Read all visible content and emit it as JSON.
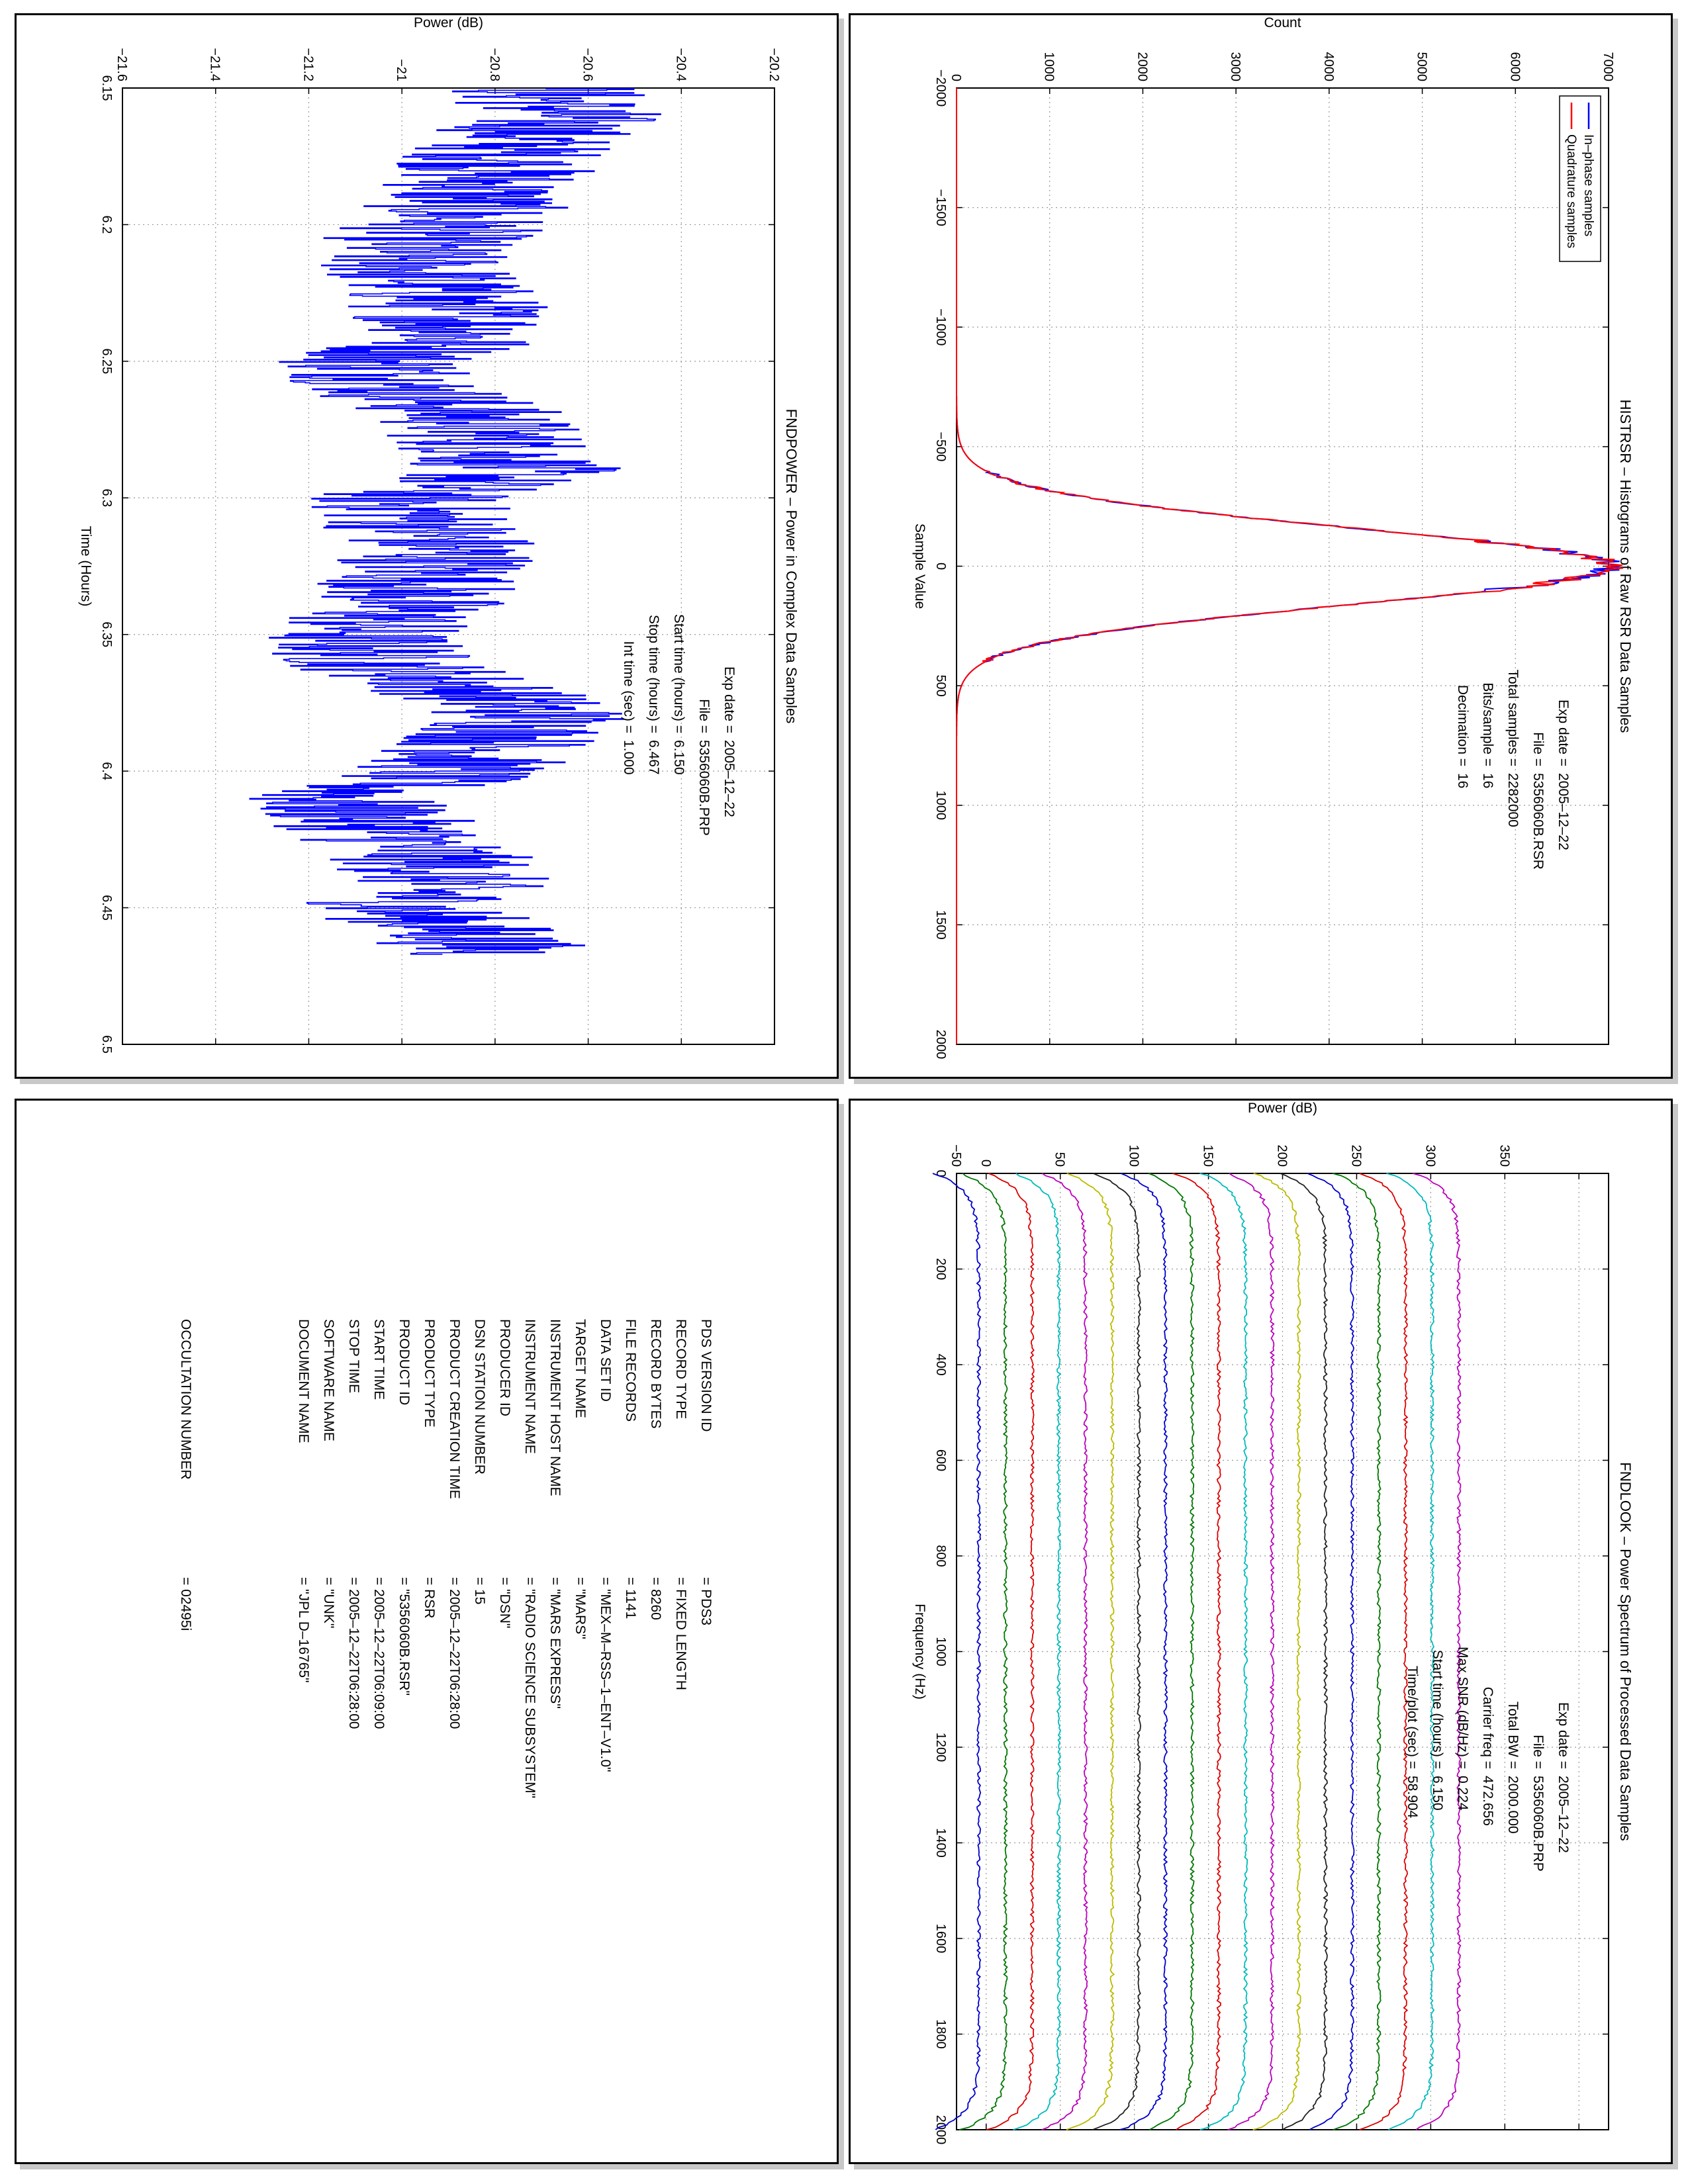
{
  "panels": {
    "histrsr": {
      "title": "HISTRSR – Histograms of Raw RSR Data Samples",
      "legend": [
        "In–phase samples",
        "Quadrature samples"
      ],
      "info": [
        {
          "label": "Exp date =",
          "value": "2005–12–22"
        },
        {
          "label": "File =",
          "value": "5356060B.RSR"
        },
        {
          "label": "Total samples =",
          "value": "2282000"
        },
        {
          "label": "Bits/sample =",
          "value": "16"
        },
        {
          "label": "Decimation =",
          "value": "16"
        }
      ]
    },
    "fndpower": {
      "title": "FNDPOWER – Power in Complex Data Samples",
      "info": [
        {
          "label": "Exp date =",
          "value": "2005–12–22"
        },
        {
          "label": "File =",
          "value": "5356060B.PRP"
        },
        {
          "label": "Start time (hours) =",
          "value": "6.150"
        },
        {
          "label": "Stop time (hours) =",
          "value": "6.467"
        },
        {
          "label": "Int time (sec) =",
          "value": "1.000"
        }
      ]
    },
    "fndlook": {
      "title": "FNDLOOK – Power Spectrum of Processed Data Samples",
      "info": [
        {
          "label": "Exp date =",
          "value": "2005–12–22"
        },
        {
          "label": "File =",
          "value": "5356060B.PRP"
        },
        {
          "label": "Total BW =",
          "value": "2000.000"
        },
        {
          "label": "Carrier freq =",
          "value": "472.656"
        },
        {
          "label": "Max SNR (dB/Hz) =",
          "value": "0.224"
        },
        {
          "label": "Start time (hours) =",
          "value": "6.150"
        },
        {
          "label": "Time/plot (sec) =",
          "value": "58.904"
        }
      ]
    },
    "label": {
      "rows": [
        {
          "key": "PDS VERSION ID",
          "value": "= PDS3"
        },
        {
          "key": "RECORD TYPE",
          "value": "= FIXED LENGTH"
        },
        {
          "key": "RECORD BYTES",
          "value": "= 8260"
        },
        {
          "key": "FILE RECORDS",
          "value": "= 1141"
        },
        {
          "key": "DATA SET ID",
          "value": "= \"MEX–M–RSS–1–ENT–V1.0\""
        },
        {
          "key": "TARGET NAME",
          "value": "= \"MARS\""
        },
        {
          "key": "INSTRUMENT HOST NAME",
          "value": "= \"MARS EXPRESS\""
        },
        {
          "key": "INSTRUMENT NAME",
          "value": "= \"RADIO SCIENCE SUBSYSTEM\""
        },
        {
          "key": "PRODUCER ID",
          "value": "= \"DSN\""
        },
        {
          "key": "DSN STATION NUMBER",
          "value": "= 15"
        },
        {
          "key": "PRODUCT CREATION TIME",
          "value": "= 2005–12–22T06:28:00"
        },
        {
          "key": "PRODUCT TYPE",
          "value": "= RSR"
        },
        {
          "key": "PRODUCT ID",
          "value": "= \"5356060B.RSR\""
        },
        {
          "key": "START TIME",
          "value": "= 2005–12–22T06:09:00"
        },
        {
          "key": "STOP TIME",
          "value": "= 2005–12–22T06:28:00"
        },
        {
          "key": "SOFTWARE NAME",
          "value": "= \"UNK\""
        },
        {
          "key": "DOCUMENT NAME",
          "value": "= \"JPL D–16765\""
        }
      ],
      "occultation": {
        "key": "OCCULTATION NUMBER",
        "value": "= 02495i"
      }
    }
  },
  "chart_data": [
    {
      "type": "line",
      "title": "HISTRSR – Histograms of Raw RSR Data Samples",
      "xlabel": "Sample Value",
      "ylabel": "Count",
      "xlim": [
        -2000,
        2000
      ],
      "ylim": [
        0,
        7000
      ],
      "xticks": [
        "−2000",
        "−1500",
        "−1000",
        "−500",
        "0",
        "500",
        "1000",
        "1500",
        "2000"
      ],
      "yticks": [
        "0",
        "1000",
        "2000",
        "3000",
        "4000",
        "5000",
        "6000",
        "7000"
      ],
      "grid": true,
      "legend": "top-left",
      "series": [
        {
          "name": "In–phase samples",
          "color": "#0000ff",
          "x": [
            -2000,
            -600,
            -500,
            -400,
            -300,
            -200,
            -150,
            -100,
            -50,
            0,
            50,
            100,
            150,
            200,
            300,
            400,
            500,
            600,
            2000
          ],
          "y": [
            0,
            0,
            20,
            260,
            1330,
            3800,
            5150,
            6180,
            6880,
            7050,
            6880,
            6180,
            5150,
            3800,
            1330,
            260,
            20,
            0,
            0
          ]
        },
        {
          "name": "Quadrature samples",
          "color": "#ff0000",
          "x": [
            -2000,
            -600,
            -500,
            -400,
            -300,
            -200,
            -150,
            -100,
            -50,
            0,
            50,
            100,
            150,
            200,
            300,
            400,
            500,
            600,
            2000
          ],
          "y": [
            0,
            0,
            20,
            260,
            1330,
            3800,
            5150,
            6180,
            6880,
            7050,
            6880,
            6180,
            5150,
            3800,
            1330,
            260,
            20,
            0,
            0
          ]
        }
      ]
    },
    {
      "type": "line",
      "title": "FNDPOWER – Power in Complex Data Samples",
      "xlabel": "Time (Hours)",
      "ylabel": "Power (dB)",
      "xlim": [
        6.15,
        6.5
      ],
      "ylim": [
        -21.6,
        -20.2
      ],
      "xticks": [
        "6.15",
        "6.2",
        "6.25",
        "6.3",
        "6.35",
        "6.4",
        "6.45",
        "6.5"
      ],
      "yticks": [
        "−21.6",
        "−21.4",
        "−21.2",
        "−21",
        "−20.8",
        "−20.6",
        "−20.4",
        "−20.2"
      ],
      "grid": true,
      "series": [
        {
          "color": "#0000ff",
          "x": [
            6.15,
            6.16,
            6.17,
            6.18,
            6.19,
            6.2,
            6.21,
            6.22,
            6.23,
            6.24,
            6.25,
            6.26,
            6.27,
            6.28,
            6.29,
            6.3,
            6.31,
            6.32,
            6.33,
            6.34,
            6.35,
            6.36,
            6.37,
            6.38,
            6.39,
            6.4,
            6.41,
            6.42,
            6.43,
            6.44,
            6.45,
            6.46,
            6.467
          ],
          "y": [
            -20.7,
            -20.65,
            -20.75,
            -20.8,
            -20.85,
            -20.9,
            -21.0,
            -20.95,
            -20.9,
            -20.85,
            -21.05,
            -21.0,
            -20.85,
            -20.8,
            -20.75,
            -21.0,
            -20.95,
            -20.9,
            -20.95,
            -21.0,
            -21.1,
            -21.05,
            -20.85,
            -20.7,
            -20.8,
            -20.9,
            -21.15,
            -21.05,
            -20.95,
            -20.9,
            -21.0,
            -20.85,
            -20.8
          ]
        }
      ]
    },
    {
      "type": "line",
      "title": "FNDLOOK – Power Spectrum of Processed Data Samples",
      "xlabel": "Frequency (Hz)",
      "ylabel": "Power (dB)",
      "xlim": [
        0,
        2000
      ],
      "ylim": [
        -70,
        370
      ],
      "xticks": [
        "0",
        "200",
        "400",
        "600",
        "800",
        "1000",
        "1200",
        "1400",
        "1600",
        "1800",
        "2000"
      ],
      "yticks": [
        "−50",
        "0",
        "50",
        "100",
        "150",
        "200",
        "250",
        "300",
        "350"
      ],
      "grid": true,
      "series": [
        {
          "color": "#0000cc",
          "offset": -55
        },
        {
          "color": "#007700",
          "offset": -37
        },
        {
          "color": "#dd0000",
          "offset": -19
        },
        {
          "color": "#00bbbb",
          "offset": -1
        },
        {
          "color": "#bb00bb",
          "offset": 17
        },
        {
          "color": "#bbbb00",
          "offset": 35
        },
        {
          "color": "#222222",
          "offset": 53
        },
        {
          "color": "#0000cc",
          "offset": 71
        },
        {
          "color": "#007700",
          "offset": 89
        },
        {
          "color": "#dd0000",
          "offset": 107
        },
        {
          "color": "#00bbbb",
          "offset": 125
        },
        {
          "color": "#bb00bb",
          "offset": 143
        },
        {
          "color": "#bbbb00",
          "offset": 161
        },
        {
          "color": "#222222",
          "offset": 179
        },
        {
          "color": "#0000cc",
          "offset": 197
        },
        {
          "color": "#007700",
          "offset": 215
        },
        {
          "color": "#dd0000",
          "offset": 233
        },
        {
          "color": "#00bbbb",
          "offset": 251
        },
        {
          "color": "#bb00bb",
          "offset": 269
        }
      ]
    }
  ]
}
